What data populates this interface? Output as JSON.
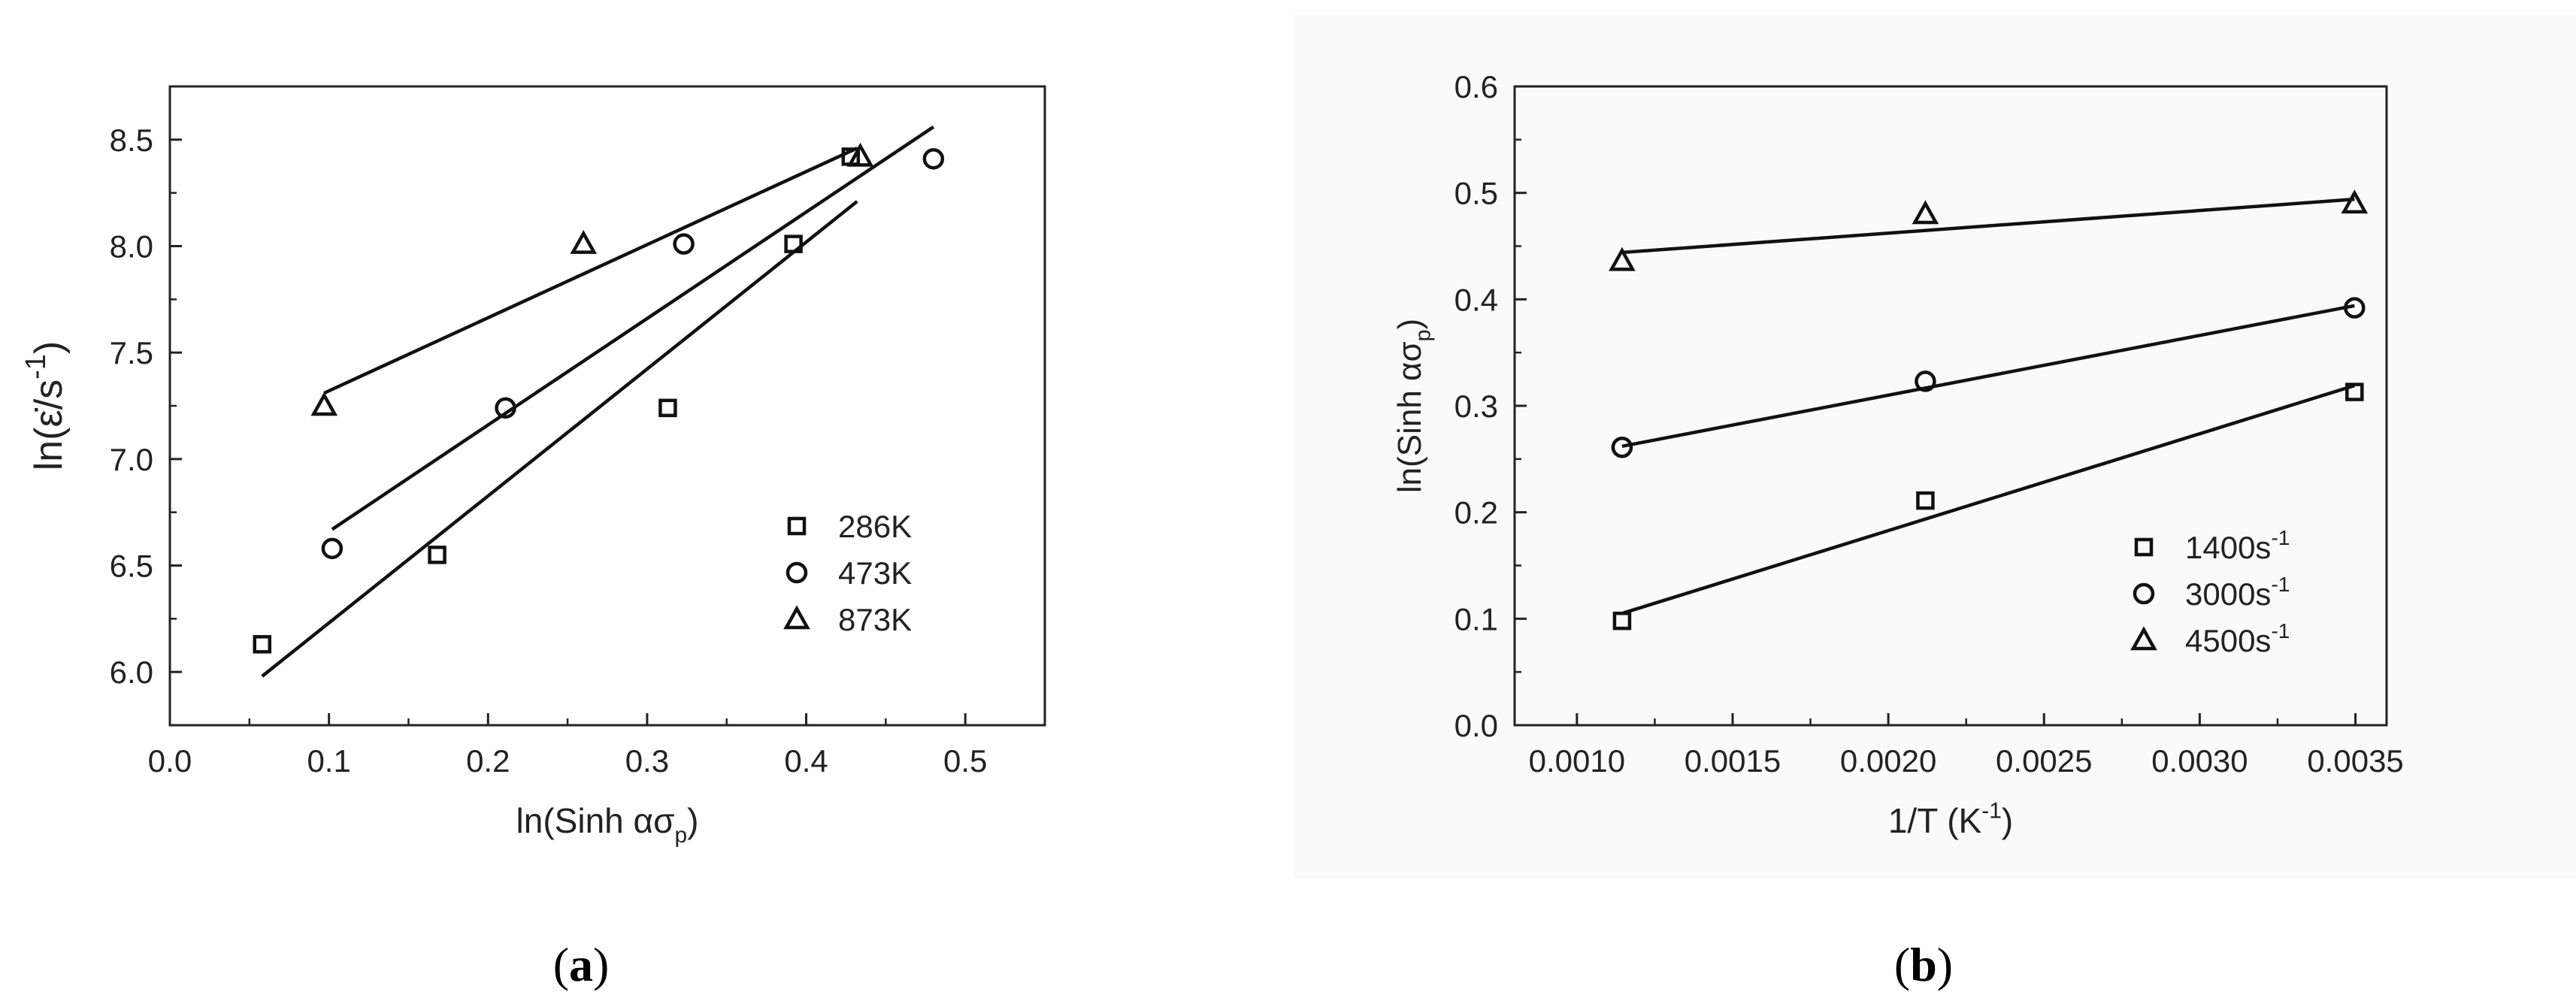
{
  "figure": {
    "panels": [
      {
        "caption_letter": "a"
      },
      {
        "caption_letter": "b"
      }
    ]
  },
  "chart_data": [
    {
      "type": "scatter",
      "xlabel": "ln(Sinh ασp)",
      "ylabel": "ln(ε̇/s⁻¹)",
      "xlim": [
        0.0,
        0.55
      ],
      "ylim": [
        5.75,
        8.75
      ],
      "xticks": [
        0.0,
        0.1,
        0.2,
        0.3,
        0.4,
        0.5
      ],
      "xtick_labels": [
        "0.0",
        "0.1",
        "0.2",
        "0.3",
        "0.4",
        "0.5"
      ],
      "yticks": [
        6.0,
        6.5,
        7.0,
        7.5,
        8.0,
        8.5
      ],
      "ytick_labels": [
        "6.0",
        "6.5",
        "7.0",
        "7.5",
        "8.0",
        "8.5"
      ],
      "grid": false,
      "legend_position": "lower-right",
      "series": [
        {
          "name": "286K",
          "marker": "square",
          "x": [
            0.058,
            0.168,
            0.313,
            0.392,
            0.428
          ],
          "y": [
            6.13,
            6.55,
            7.24,
            8.01,
            8.42
          ],
          "fit": {
            "x": [
              0.058,
              0.432
            ],
            "y": [
              5.98,
              8.21
            ]
          }
        },
        {
          "name": "473K",
          "marker": "circle",
          "x": [
            0.102,
            0.211,
            0.323,
            0.48
          ],
          "y": [
            6.58,
            7.24,
            8.01,
            8.41
          ],
          "fit": {
            "x": [
              0.102,
              0.48
            ],
            "y": [
              6.67,
              8.56
            ]
          }
        },
        {
          "name": "873K",
          "marker": "triangle",
          "x": [
            0.097,
            0.26,
            0.434
          ],
          "y": [
            7.25,
            8.01,
            8.42
          ],
          "fit": {
            "x": [
              0.097,
              0.432
            ],
            "y": [
              7.31,
              8.46
            ]
          }
        }
      ]
    },
    {
      "type": "scatter",
      "xlabel": "1/T (K⁻¹)",
      "ylabel": "ln(Sinh ασp)",
      "xlim": [
        0.0008,
        0.0036
      ],
      "ylim": [
        0.0,
        0.6
      ],
      "xticks": [
        0.001,
        0.0015,
        0.002,
        0.0025,
        0.003,
        0.0035
      ],
      "xtick_labels": [
        "0.0010",
        "0.0015",
        "0.0020",
        "0.0025",
        "0.0030",
        "0.0035"
      ],
      "yticks": [
        0.0,
        0.1,
        0.2,
        0.3,
        0.4,
        0.5,
        0.6
      ],
      "ytick_labels": [
        "0.0",
        "0.1",
        "0.2",
        "0.3",
        "0.4",
        "0.5",
        "0.6"
      ],
      "grid": false,
      "legend_position": "lower-right",
      "series": [
        {
          "name": "1400s⁻¹",
          "marker": "square",
          "x": [
            0.001145,
            0.002119,
            0.003497
          ],
          "y": [
            0.098,
            0.211,
            0.313
          ],
          "fit": {
            "x": [
              0.001145,
              0.003497
            ],
            "y": [
              0.105,
              0.319
            ]
          }
        },
        {
          "name": "3000s⁻¹",
          "marker": "circle",
          "x": [
            0.001145,
            0.002119,
            0.003497
          ],
          "y": [
            0.261,
            0.323,
            0.392
          ],
          "fit": {
            "x": [
              0.001145,
              0.003497
            ],
            "y": [
              0.262,
              0.394
            ]
          }
        },
        {
          "name": "4500s⁻¹",
          "marker": "triangle",
          "x": [
            0.001145,
            0.002119,
            0.003497
          ],
          "y": [
            0.436,
            0.48,
            0.49
          ],
          "fit": {
            "x": [
              0.001145,
              0.003497
            ],
            "y": [
              0.444,
              0.494
            ]
          }
        }
      ]
    }
  ]
}
